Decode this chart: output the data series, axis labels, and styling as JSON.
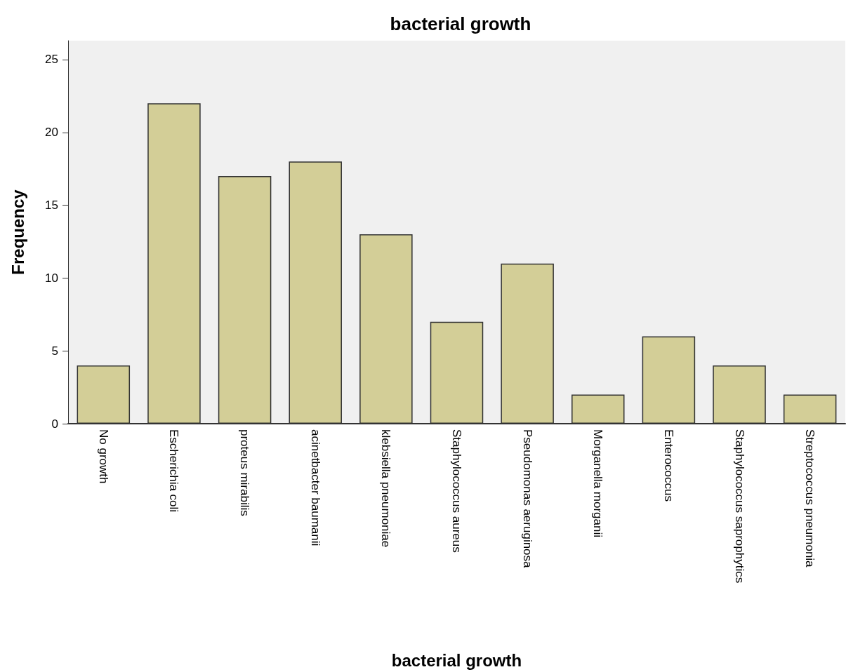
{
  "chart_data": {
    "type": "bar",
    "title": "bacterial growth",
    "xlabel": "bacterial growth",
    "ylabel": "Frequency",
    "categories": [
      "No growth",
      "Escherichia coli",
      "proteus mirabilis",
      "acinetbacter baumanii",
      "klebsiella pneumoniae",
      "Staphylococcus aureus",
      "Pseudomonas aeruginosa",
      "Morganella morganii",
      "Enterococcus",
      "Staphylococcus saprophytics",
      "Streptococcus pneumonia"
    ],
    "values": [
      4,
      22,
      17,
      18,
      13,
      7,
      11,
      2,
      6,
      4,
      2
    ],
    "color": "#d3ce97",
    "ylim": [
      0,
      26.3
    ],
    "yticks": [
      0,
      5,
      10,
      15,
      20,
      25
    ],
    "grid": false
  }
}
